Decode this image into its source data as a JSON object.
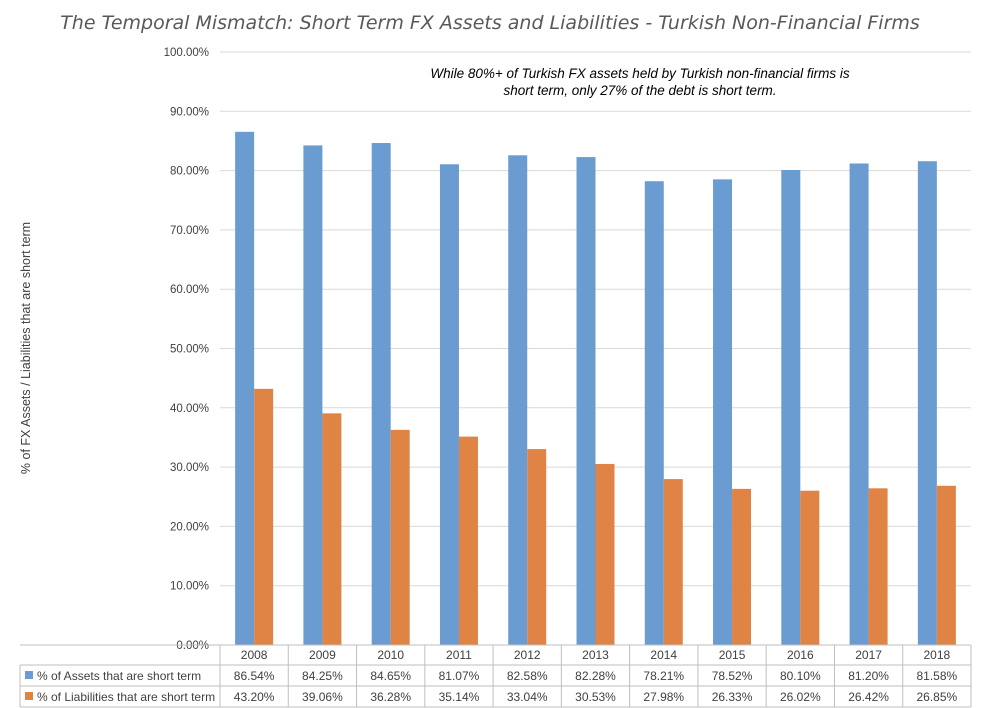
{
  "chart_data": {
    "type": "bar",
    "title": "The Temporal Mismatch: Short Term FX Assets and Liabilities - Turkish Non-Financial Firms",
    "ylabel": "% of FX Assets / Liabilities that are short term",
    "xlabel": "",
    "ylim": [
      0,
      100
    ],
    "yticks": [
      "0.00%",
      "10.00%",
      "20.00%",
      "30.00%",
      "40.00%",
      "50.00%",
      "60.00%",
      "70.00%",
      "80.00%",
      "90.00%",
      "100.00%"
    ],
    "grid": true,
    "legend": "data table, bottom",
    "annotation": [
      "While 80%+ of Turkish FX assets held by Turkish non-financial firms is",
      "short term, only 27% of the debt is short term."
    ],
    "categories": [
      "2008",
      "2009",
      "2010",
      "2011",
      "2012",
      "2013",
      "2014",
      "2015",
      "2016",
      "2017",
      "2018"
    ],
    "series": [
      {
        "name": "% of Assets that are short term",
        "color": "#6a9bd1",
        "values": [
          86.54,
          84.25,
          84.65,
          81.07,
          82.58,
          82.28,
          78.21,
          78.52,
          80.1,
          81.2,
          81.58
        ],
        "labels": [
          "86.54%",
          "84.25%",
          "84.65%",
          "81.07%",
          "82.58%",
          "82.28%",
          "78.21%",
          "78.52%",
          "80.10%",
          "81.20%",
          "81.58%"
        ]
      },
      {
        "name": "% of Liabilities that are short term",
        "color": "#df8444",
        "values": [
          43.2,
          39.06,
          36.28,
          35.14,
          33.04,
          30.53,
          27.98,
          26.33,
          26.02,
          26.42,
          26.85
        ],
        "labels": [
          "43.20%",
          "39.06%",
          "36.28%",
          "35.14%",
          "33.04%",
          "30.53%",
          "27.98%",
          "26.33%",
          "26.02%",
          "26.42%",
          "26.85%"
        ]
      }
    ]
  }
}
